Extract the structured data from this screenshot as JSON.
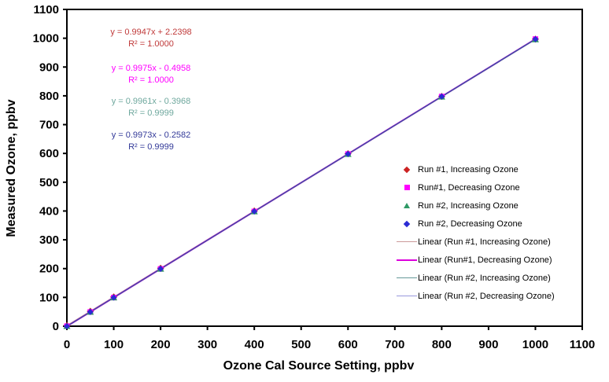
{
  "chart_data": {
    "type": "scatter",
    "title": "",
    "xlabel": "Ozone Cal Source Setting, ppbv",
    "ylabel": "Measured Ozone, ppbv",
    "xlim": [
      0,
      1100
    ],
    "ylim": [
      0,
      1100
    ],
    "x_ticks": [
      0,
      100,
      200,
      300,
      400,
      500,
      600,
      700,
      800,
      900,
      1000,
      1100
    ],
    "y_ticks": [
      0,
      100,
      200,
      300,
      400,
      500,
      600,
      700,
      800,
      900,
      1000,
      1100
    ],
    "grid": false,
    "legend_position": "right-inside",
    "x": [
      0,
      50,
      100,
      200,
      400,
      600,
      800,
      1000
    ],
    "series": [
      {
        "name": "Run #1, Increasing Ozone",
        "marker": "diamond",
        "marker_color": "#cc2222",
        "values": [
          2.2,
          52.0,
          101.7,
          201.2,
          400.1,
          599.1,
          798.0,
          997.0
        ],
        "trend": {
          "slope": 0.9947,
          "intercept": 2.2398,
          "r2": "1.0000",
          "line_color": "#cc9999",
          "line_width": 1.2
        }
      },
      {
        "name": "Run#1, Decreasing Ozone",
        "marker": "square",
        "marker_color": "#ff00ff",
        "values": [
          -0.5,
          49.4,
          99.3,
          199.0,
          398.5,
          598.0,
          797.5,
          997.0
        ],
        "trend": {
          "slope": 0.9975,
          "intercept": -0.4958,
          "r2": "1.0000",
          "line_color": "#dd00dd",
          "line_width": 2
        }
      },
      {
        "name": "Run #2, Increasing Ozone",
        "marker": "triangle",
        "marker_color": "#2e9965",
        "values": [
          -0.4,
          49.4,
          99.2,
          198.8,
          398.0,
          597.3,
          796.6,
          995.7
        ],
        "trend": {
          "slope": 0.9961,
          "intercept": -0.3968,
          "r2": "0.9999",
          "line_color": "#669999",
          "line_width": 1.2
        }
      },
      {
        "name": "Run #2, Decreasing Ozone",
        "marker": "diamond",
        "marker_color": "#2a2ad4",
        "values": [
          -0.3,
          49.6,
          99.5,
          199.2,
          398.7,
          598.1,
          797.6,
          997.0
        ],
        "trend": {
          "slope": 0.9973,
          "intercept": -0.2582,
          "r2": "0.9999",
          "line_color": "#4444aa",
          "line_width": 1.4
        }
      }
    ]
  },
  "equations": [
    {
      "line1": "y = 0.9947x + 2.2398",
      "line2": "R² = 1.0000",
      "color": "#c03a3a"
    },
    {
      "line1": "y = 0.9975x - 0.4958",
      "line2": "R² = 1.0000",
      "color": "#ff00ff"
    },
    {
      "line1": "y = 0.9961x - 0.3968",
      "line2": "R² = 0.9999",
      "color": "#6fa89e"
    },
    {
      "line1": "y = 0.9973x - 0.2582",
      "line2": "R² = 0.9999",
      "color": "#333a99"
    }
  ],
  "legend": {
    "items": [
      {
        "type": "marker",
        "shape": "diamond",
        "color": "#cc2222",
        "weight": 1,
        "label": "Run #1, Increasing Ozone"
      },
      {
        "type": "marker",
        "shape": "square",
        "color": "#ff00ff",
        "weight": 1,
        "label": "Run#1, Decreasing Ozone"
      },
      {
        "type": "marker",
        "shape": "triangle",
        "color": "#2e9965",
        "weight": 1,
        "label": "Run #2, Increasing Ozone"
      },
      {
        "type": "marker",
        "shape": "diamond",
        "color": "#2a2ad4",
        "weight": 1,
        "label": "Run #2, Decreasing Ozone"
      },
      {
        "type": "line",
        "shape": "line",
        "color": "#cc9999",
        "weight": 1,
        "label": "Linear (Run #1, Increasing Ozone)"
      },
      {
        "type": "line",
        "shape": "line",
        "color": "#dd00dd",
        "weight": 2,
        "label": "Linear (Run#1, Decreasing Ozone)"
      },
      {
        "type": "line",
        "shape": "line",
        "color": "#669999",
        "weight": 1,
        "label": "Linear (Run #2, Increasing Ozone)"
      },
      {
        "type": "line",
        "shape": "line",
        "color": "#9999dd",
        "weight": 1,
        "label": "Linear (Run #2, Decreasing Ozone)"
      }
    ]
  }
}
